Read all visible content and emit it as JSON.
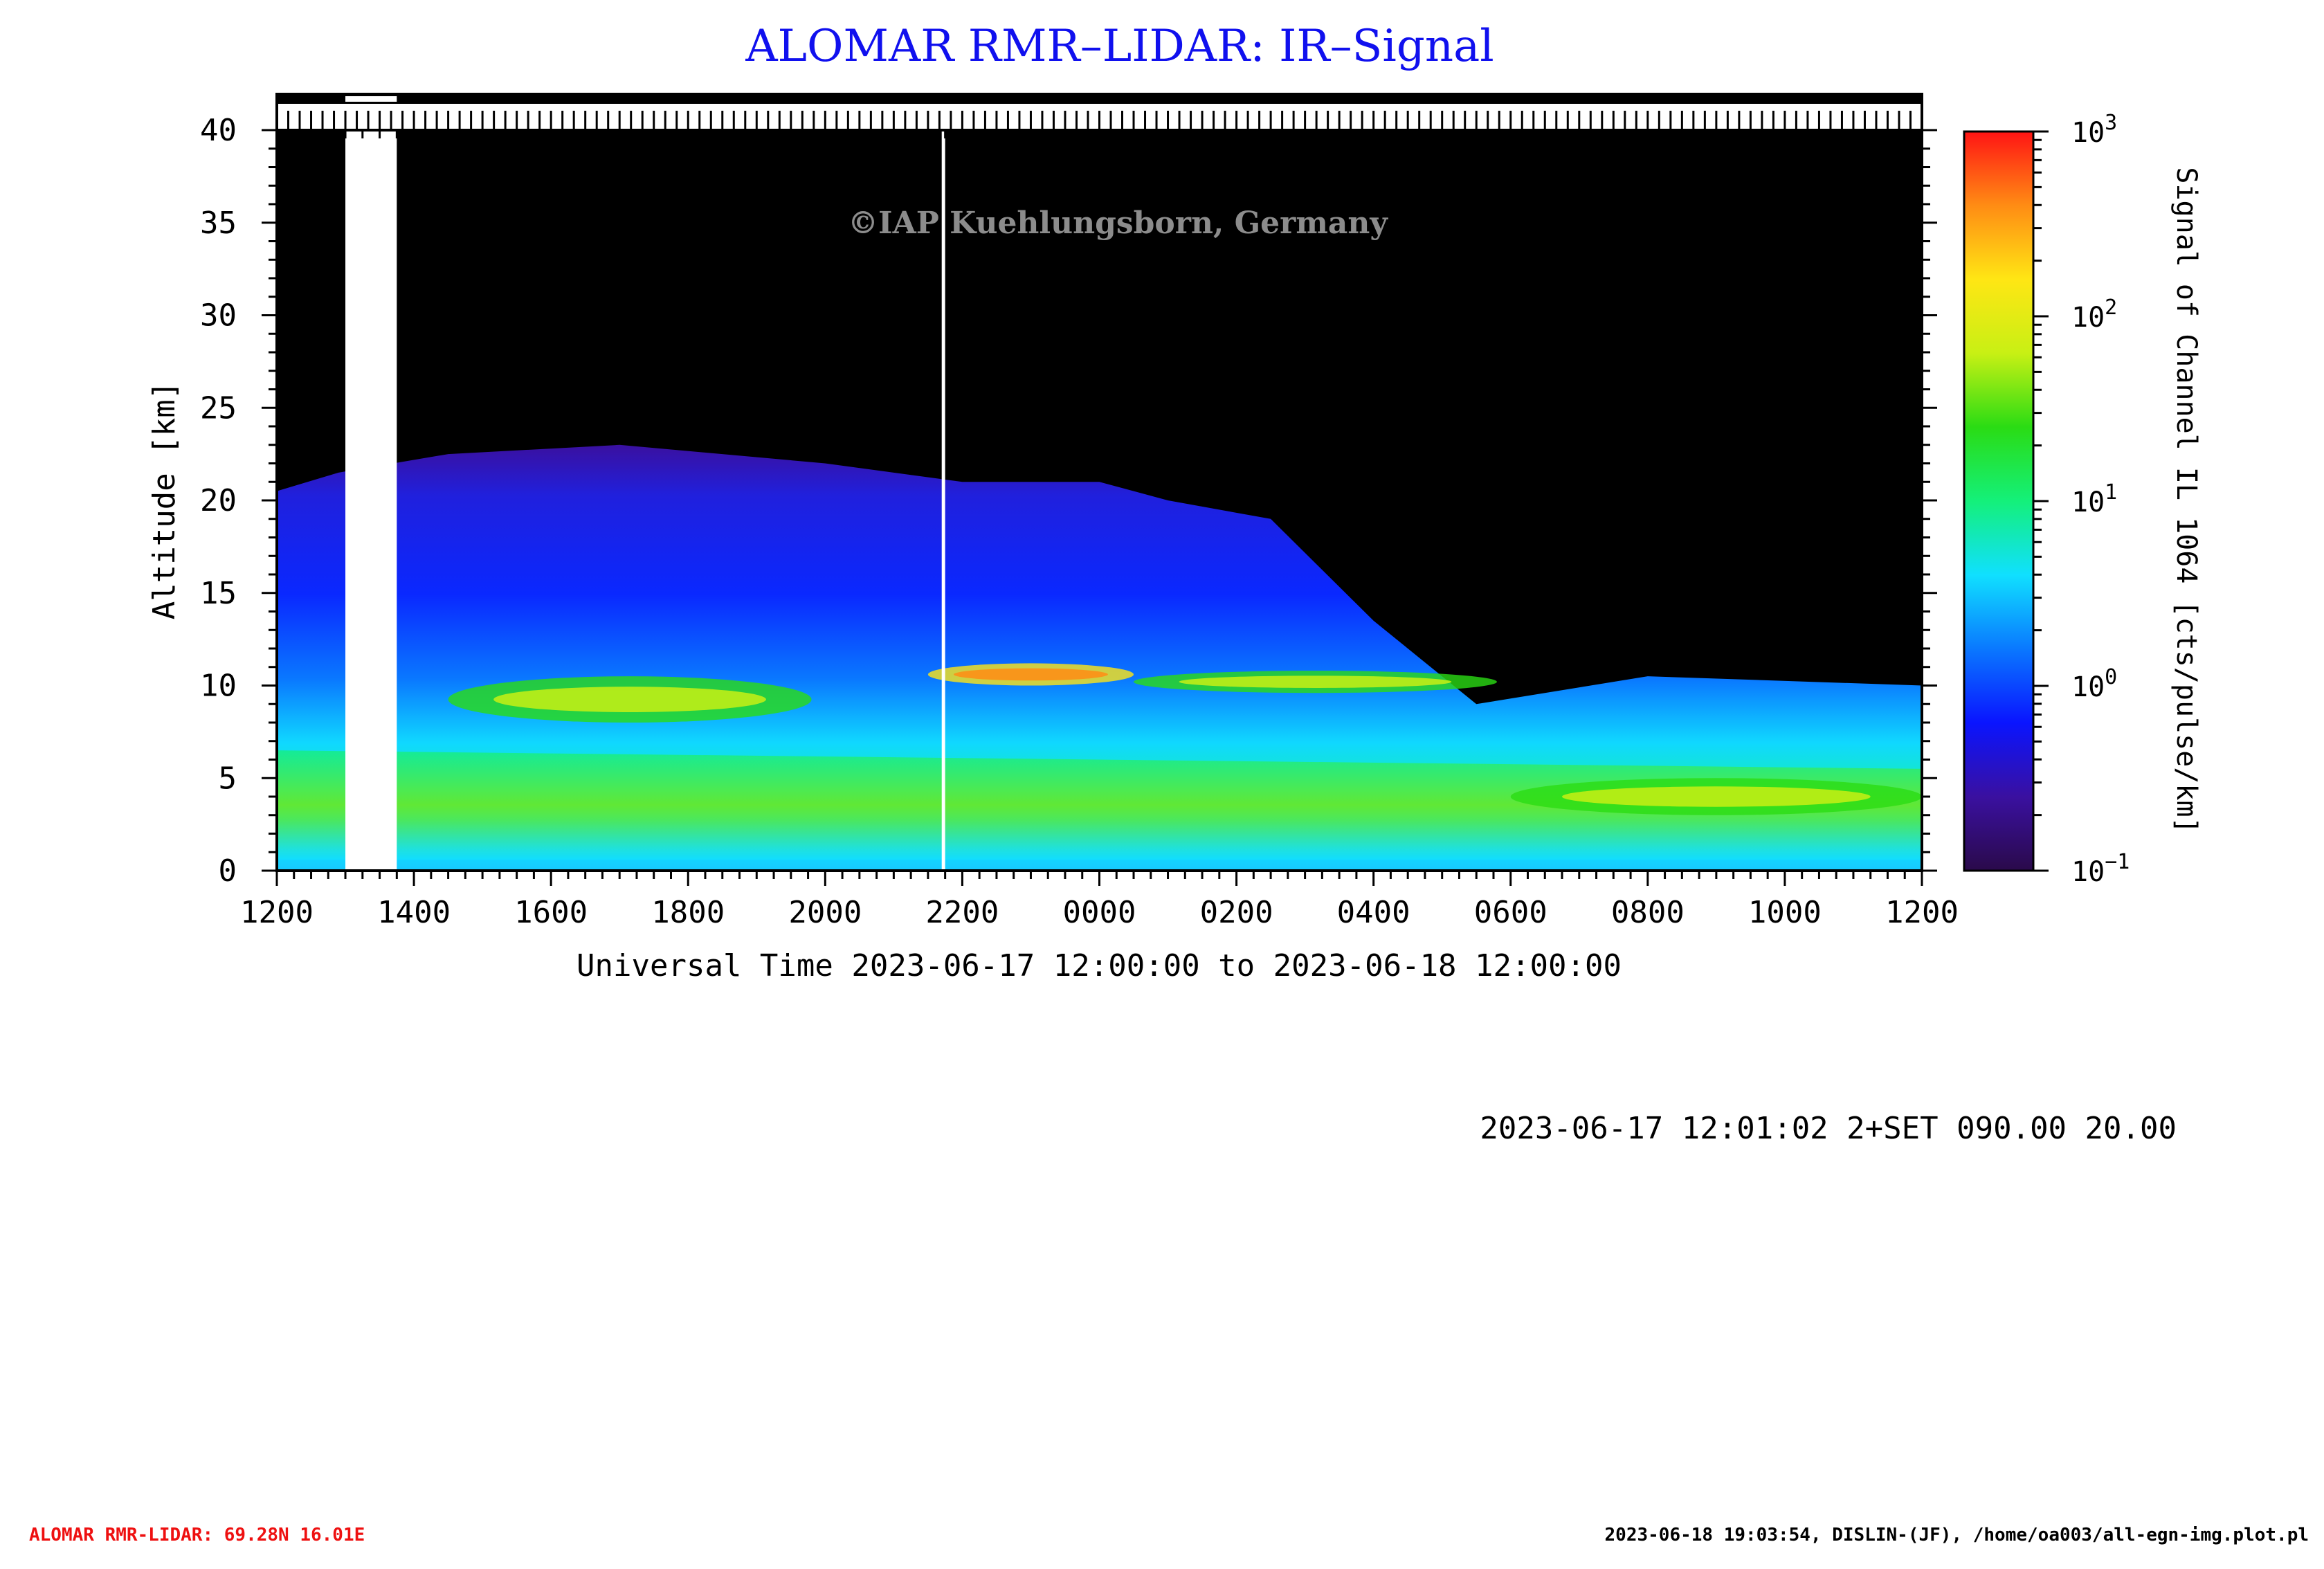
{
  "header": {
    "title": "ALOMAR RMR–LIDAR: IR–Signal"
  },
  "watermark": "©IAP Kuehlungsborn, Germany",
  "chart_data": {
    "type": "heatmap",
    "title": "ALOMAR RMR–LIDAR: IR–Signal",
    "xlabel": "Universal Time 2023-06-17 12:00:00 to 2023-06-18 12:00:00",
    "ylabel": "Altitude [km]",
    "colorbar_label": "Signal of Channel IL 1064 [cts/pulse/km]",
    "x_hours_range": [
      0,
      24
    ],
    "x_ticks": [
      "1200",
      "1400",
      "1600",
      "1800",
      "2000",
      "2200",
      "0000",
      "0200",
      "0400",
      "0600",
      "0800",
      "1000",
      "1200"
    ],
    "ylim": [
      0,
      40
    ],
    "y_ticks": [
      "0",
      "5",
      "10",
      "15",
      "20",
      "25",
      "30",
      "35",
      "40"
    ],
    "colorbar_scale": "log",
    "colorbar_range": [
      0.1,
      1000
    ],
    "colorbar_ticks": [
      {
        "base": "10",
        "exp": "3"
      },
      {
        "base": "10",
        "exp": "2"
      },
      {
        "base": "10",
        "exp": "1"
      },
      {
        "base": "10",
        "exp": "0"
      },
      {
        "base": "10",
        "exp": "−1"
      }
    ],
    "colormap": [
      "#2a0a4a",
      "#3a10a0",
      "#0a14ff",
      "#0a78ff",
      "#10e0ff",
      "#14f07a",
      "#2adc14",
      "#c8f014",
      "#ffe614",
      "#ff8c14",
      "#ff1414"
    ],
    "data_gaps_hours": [
      [
        1.0,
        1.75
      ],
      [
        9.7,
        9.75
      ]
    ],
    "signal_top_km": [
      {
        "x": 0.0,
        "y": 20.5
      },
      {
        "x": 0.9,
        "y": 21.5
      },
      {
        "x": 2.5,
        "y": 22.5
      },
      {
        "x": 5.0,
        "y": 23.0
      },
      {
        "x": 8.0,
        "y": 22.0
      },
      {
        "x": 10.0,
        "y": 21.0
      },
      {
        "x": 12.0,
        "y": 21.0
      },
      {
        "x": 13.0,
        "y": 20.0
      },
      {
        "x": 14.5,
        "y": 19.0
      },
      {
        "x": 16.0,
        "y": 13.5
      },
      {
        "x": 17.5,
        "y": 9.0
      },
      {
        "x": 20.0,
        "y": 10.5
      },
      {
        "x": 24.0,
        "y": 10.0
      }
    ],
    "features": [
      {
        "name": "aerosol/cloud layer",
        "x_hours": [
          2.5,
          7.8
        ],
        "y_km": [
          8.0,
          10.5
        ],
        "peak_signal": 80
      },
      {
        "name": "aerosol/cloud layer",
        "x_hours": [
          9.5,
          12.5
        ],
        "y_km": [
          10.0,
          11.2
        ],
        "peak_signal": 300
      },
      {
        "name": "aerosol/cloud layer",
        "x_hours": [
          12.5,
          17.8
        ],
        "y_km": [
          9.6,
          10.8
        ],
        "peak_signal": 60
      },
      {
        "name": "low-level layer",
        "x_hours": [
          18.0,
          24.0
        ],
        "y_km": [
          3.0,
          5.0
        ],
        "peak_signal": 80
      }
    ]
  },
  "info_line": "2023-06-17 12:01:02 2+SET 090.00 20.00",
  "footer": {
    "left": "ALOMAR RMR-LIDAR: 69.28N 16.01E",
    "right": "2023-06-18 19:03:54, DISLIN-(JF), /home/oa003/all-egn-img.plot.pl"
  },
  "colors": {
    "title": "#1010ee",
    "footer_left": "#ee1010",
    "plot_background": "#000000"
  }
}
